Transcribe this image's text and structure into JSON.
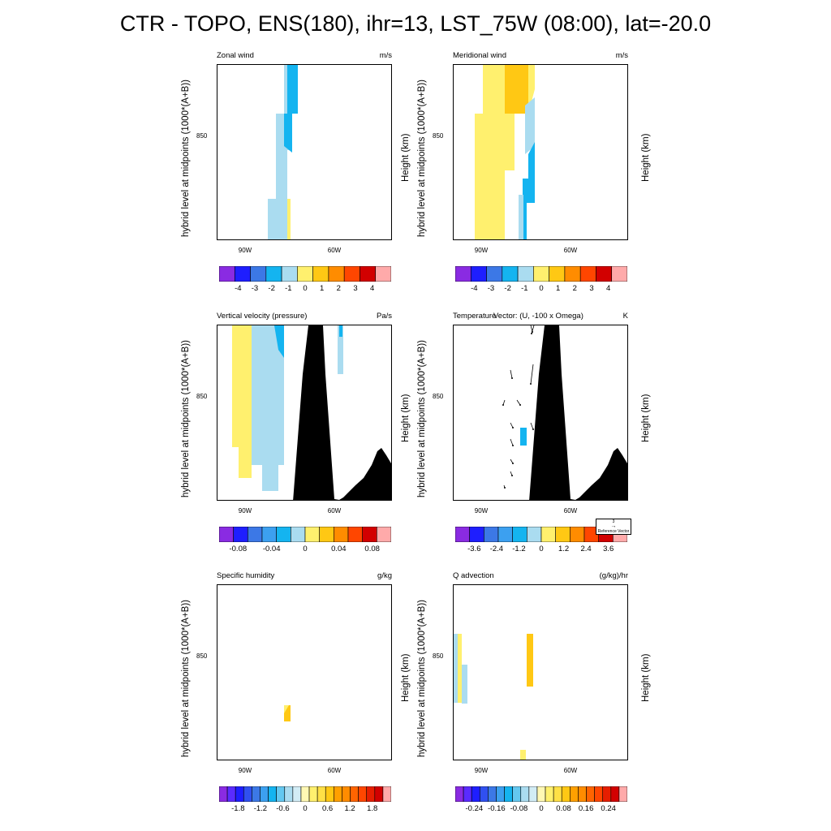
{
  "title": "CTR - TOPO, ENS(180), ihr=13, LST_75W (08:00), lat=-20.0",
  "y_label_left": "hybrid level at midpoints (1000*(A+B))",
  "y_label_height": "Height (km)",
  "ytick": "850",
  "xticks": [
    "90W",
    "60W"
  ],
  "reference_vector": {
    "value": "3",
    "label": "Reference Vector"
  },
  "panels": [
    {
      "id": "zonal",
      "title": "Zonal wind",
      "units": "m/s",
      "right_height_label": false,
      "colorbar_labels": [
        "-4",
        "-3",
        "-2",
        "-1",
        "0",
        "1",
        "2",
        "3",
        "4"
      ]
    },
    {
      "id": "meridional",
      "title": "Meridional wind",
      "units": "m/s",
      "right_height_label": true,
      "colorbar_labels": [
        "-4",
        "-3",
        "-2",
        "-1",
        "0",
        "1",
        "2",
        "3",
        "4"
      ]
    },
    {
      "id": "omega",
      "title": "Vertical velocity (pressure)",
      "units": "Pa/s",
      "right_height_label": false,
      "colorbar_labels": [
        "-0.08",
        "-0.04",
        "0",
        "0.04",
        "0.08"
      ]
    },
    {
      "id": "temp",
      "title": "Temperature",
      "subtitle": "Vector: (U, -100 x Omega)",
      "units": "K",
      "right_height_label": true,
      "colorbar_labels": [
        "-3.6",
        "-2.4",
        "-1.2",
        "0",
        "1.2",
        "2.4",
        "3.6"
      ]
    },
    {
      "id": "q",
      "title": "Specific humidity",
      "units": "g/kg",
      "right_height_label": false,
      "colorbar_labels": [
        "-1.8",
        "-1.2",
        "-0.6",
        "0",
        "0.6",
        "1.2",
        "1.8"
      ]
    },
    {
      "id": "qadv",
      "title": "Q advection",
      "units": "(g/kg)/hr",
      "right_height_label": true,
      "colorbar_labels": [
        "-0.24",
        "-0.16",
        "-0.08",
        "0",
        "0.08",
        "0.16",
        "0.24"
      ]
    }
  ],
  "colors": {
    "purple": "#8a2be2",
    "blue": "#1e1eff",
    "mblue": "#3c78e6",
    "sky": "#14b4f0",
    "lightblue": "#aadcf0",
    "yellow": "#fff06e",
    "gold": "#ffc814",
    "orange": "#ff8c00",
    "redorange": "#ff4600",
    "red": "#d20000",
    "pink": "#ffaaaa",
    "terrain": "#000000"
  },
  "chart_data": [
    {
      "type": "heatmap",
      "title": "Zonal wind",
      "units": "m/s",
      "x_ticks": [
        "90W",
        "60W"
      ],
      "y_ticks": [
        "850"
      ],
      "colorbar": [
        -4,
        -3,
        -2,
        -1,
        0,
        1,
        2,
        3,
        4
      ],
      "features": [
        "negative (-1 to -2) column near 80W-76W in upper levels",
        "weak negative/positive values near surface around 78W"
      ]
    },
    {
      "type": "heatmap",
      "title": "Meridional wind",
      "units": "m/s",
      "x_ticks": [
        "90W",
        "60W"
      ],
      "y_ticks": [
        "850"
      ],
      "colorbar": [
        -4,
        -3,
        -2,
        -1,
        0,
        1,
        2,
        3,
        4
      ],
      "features": [
        "positive 0-1 m/s column 91W-82W",
        "positive 1-2 m/s near 82W-77W aloft",
        "negative -1 to -2 m/s near 77W-75W"
      ]
    },
    {
      "type": "heatmap",
      "title": "Vertical velocity (pressure)",
      "units": "Pa/s",
      "x_ticks": [
        "90W",
        "60W"
      ],
      "y_ticks": [
        "850"
      ],
      "colorbar": [
        -0.08,
        -0.04,
        0,
        0.04,
        0.08
      ],
      "features": [
        "positive 0-0.02 Pa/s near 91W-88W",
        "negative -0.02 to 0 Pa/s near 88W-78W",
        "terrain (Andes) peaking near 68W"
      ]
    },
    {
      "type": "heatmap",
      "title": "Temperature",
      "units": "K",
      "x_ticks": [
        "90W",
        "60W"
      ],
      "y_ticks": [
        "850"
      ],
      "colorbar": [
        -3.6,
        -2.4,
        -1.2,
        0,
        1.2,
        2.4,
        3.6
      ],
      "features": [
        "wind vectors (U, -100 x Omega) west of terrain",
        "small negative anomaly near 77W mid-levels"
      ]
    },
    {
      "type": "heatmap",
      "title": "Specific humidity",
      "units": "g/kg",
      "x_ticks": [
        "90W",
        "60W"
      ],
      "y_ticks": [
        "850"
      ],
      "colorbar": [
        -1.8,
        -1.2,
        -0.6,
        0,
        0.6,
        1.2,
        1.8
      ],
      "features": [
        "small positive patch near 78W lower levels"
      ]
    },
    {
      "type": "heatmap",
      "title": "Q advection",
      "units": "(g/kg)/hr",
      "x_ticks": [
        "90W",
        "60W"
      ],
      "y_ticks": [
        "850"
      ],
      "colorbar": [
        -0.24,
        -0.16,
        -0.08,
        0,
        0.08,
        0.16,
        0.24
      ],
      "features": [
        "weak signals near 99W-96W",
        "positive patch near 75W mid-levels"
      ]
    }
  ]
}
